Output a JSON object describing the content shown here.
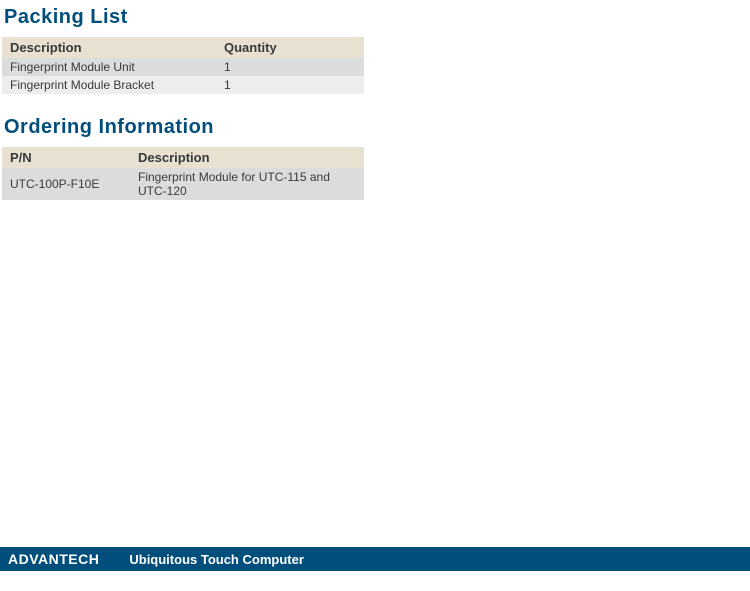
{
  "colors": {
    "heading": "#004e7c",
    "header_row_bg": "#e8e0d0",
    "row_alt_1": "#dcdcdc",
    "row_alt_2": "#ededed",
    "text": "#3a3a3a",
    "footer_bg": "#004e7c",
    "footer_text": "#ffffff"
  },
  "typography": {
    "heading_fontsize": 20,
    "table_header_fontsize": 13,
    "table_cell_fontsize": 12,
    "footer_fontsize": 13
  },
  "layout": {
    "packing_table_width": 362,
    "packing_col1_width": 214,
    "packing_col2_width": 148,
    "ordering_table_width": 362,
    "ordering_col1_width": 128,
    "ordering_col2_width": 234
  },
  "sections": {
    "packing": {
      "title": "Packing List",
      "columns": [
        "Description",
        "Quantity"
      ],
      "rows": [
        [
          "Fingerprint Module Unit",
          "1"
        ],
        [
          "Fingerprint Module Bracket",
          "1"
        ]
      ]
    },
    "ordering": {
      "title": "Ordering Information",
      "columns": [
        "P/N",
        "Description"
      ],
      "rows": [
        [
          "UTC-100P-F10E",
          "Fingerprint Module for UTC-115 and UTC-120"
        ]
      ]
    }
  },
  "footer": {
    "logo_text": "ADVANTECH",
    "tagline": "Ubiquitous Touch Computer"
  }
}
